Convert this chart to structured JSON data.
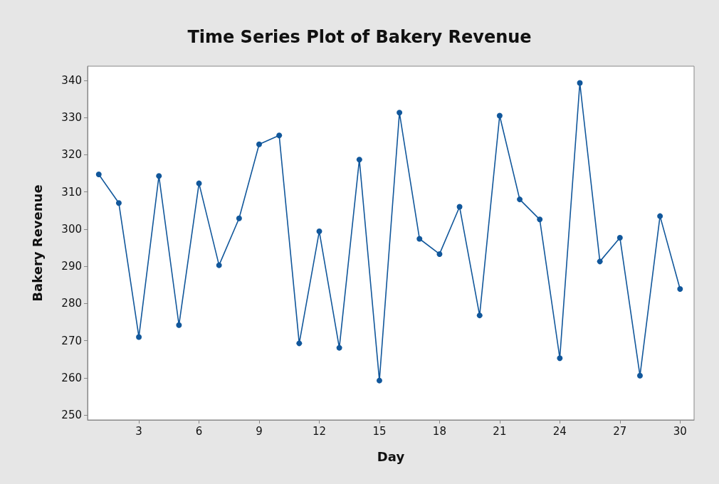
{
  "chart_data": {
    "type": "line",
    "title": "Time Series Plot of Bakery Revenue",
    "xlabel": "Day",
    "ylabel": "Bakery Revenue",
    "x": [
      1,
      2,
      3,
      4,
      5,
      6,
      7,
      8,
      9,
      10,
      11,
      12,
      13,
      14,
      15,
      16,
      17,
      18,
      19,
      20,
      21,
      22,
      23,
      24,
      25,
      26,
      27,
      28,
      29,
      30
    ],
    "series": [
      {
        "color": "#11579b",
        "values": [
          314.7,
          307,
          271,
          314.3,
          274.2,
          312.3,
          290.3,
          302.9,
          322.8,
          325.2,
          269.3,
          299.4,
          268.1,
          318.7,
          259.3,
          331.3,
          297.4,
          293.3,
          306,
          276.8,
          330.5,
          308,
          302.6,
          265.3,
          339.3,
          291.3,
          297.7,
          260.6,
          303.5,
          283.9
        ]
      }
    ],
    "xlim": [
      0.44,
      30.7
    ],
    "xticks": [
      3,
      6,
      9,
      12,
      15,
      18,
      21,
      24,
      27,
      30
    ],
    "ylim": [
      248.7,
      343.8
    ],
    "yticks": [
      250,
      260,
      270,
      280,
      290,
      300,
      310,
      320,
      330,
      340
    ],
    "grid": false,
    "marker": "circle",
    "line_style": "solid"
  }
}
